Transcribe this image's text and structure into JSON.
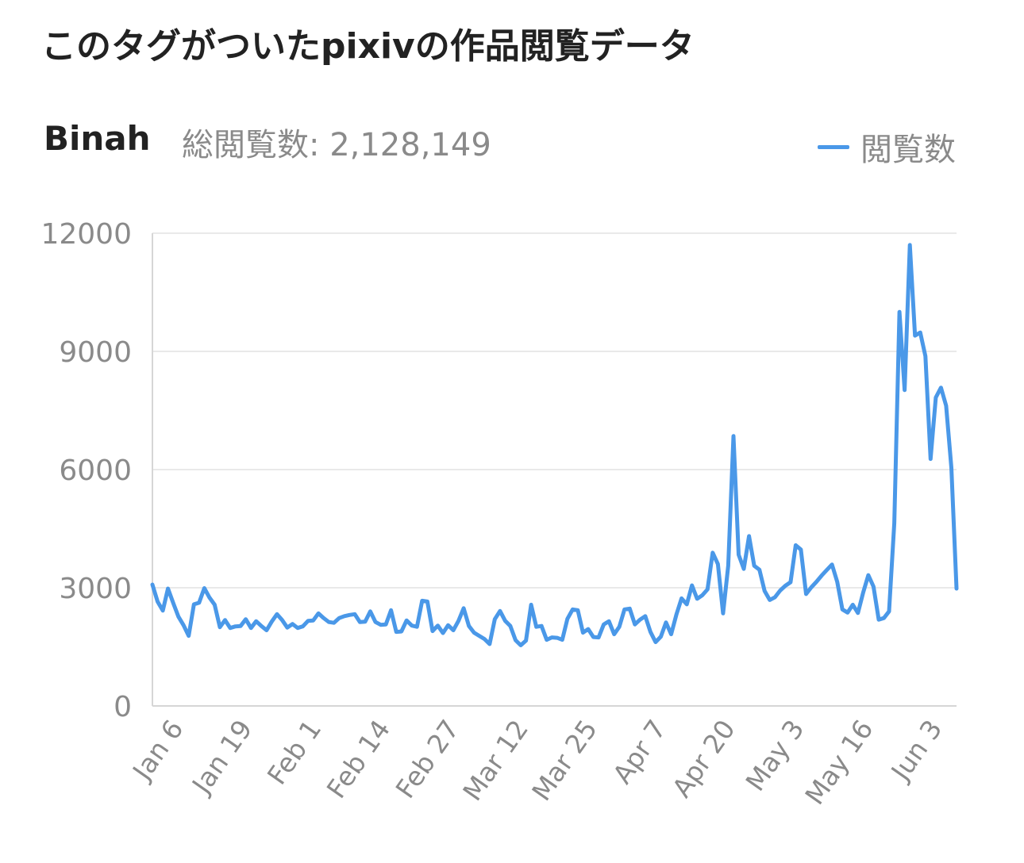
{
  "header": {
    "title": "このタグがついたpixivの作品閲覧データ",
    "tag_name": "Binah",
    "total_views": "総閲覧数: 2,128,149"
  },
  "colors": {
    "series_line": "#4a98e8",
    "grid": "#e9e9e9",
    "axis": "#d6d6d6",
    "tick_text": "#8a8a8a"
  },
  "chart_data": {
    "type": "line",
    "title": "",
    "xlabel": "",
    "ylabel": "",
    "ylim": [
      0,
      12000
    ],
    "yticks": [
      "0",
      "3000",
      "6000",
      "9000",
      "12000"
    ],
    "xticks": [
      "Jan 6",
      "Jan 19",
      "Feb 1",
      "Feb 14",
      "Feb 27",
      "Mar 12",
      "Mar 25",
      "Apr 7",
      "Apr 20",
      "May 3",
      "May 16",
      "Jun 3"
    ],
    "grid": true,
    "legend_position": "top-right",
    "series": [
      {
        "name": "閲覧数",
        "values": [
          3080,
          2650,
          2420,
          2980,
          2620,
          2270,
          2050,
          1780,
          2580,
          2620,
          2990,
          2750,
          2570,
          2000,
          2180,
          1980,
          2020,
          2030,
          2200,
          1980,
          2150,
          2030,
          1920,
          2140,
          2330,
          2180,
          1990,
          2080,
          1980,
          2020,
          2160,
          2170,
          2350,
          2230,
          2130,
          2110,
          2230,
          2280,
          2310,
          2330,
          2130,
          2140,
          2400,
          2130,
          2060,
          2070,
          2430,
          1880,
          1890,
          2170,
          2040,
          2010,
          2670,
          2650,
          1900,
          2040,
          1850,
          2050,
          1920,
          2160,
          2480,
          2030,
          1860,
          1780,
          1700,
          1570,
          2200,
          2410,
          2160,
          2030,
          1670,
          1540,
          1660,
          2570,
          2010,
          2030,
          1680,
          1740,
          1730,
          1680,
          2210,
          2450,
          2430,
          1860,
          1950,
          1750,
          1740,
          2070,
          2150,
          1820,
          2010,
          2450,
          2470,
          2070,
          2190,
          2280,
          1880,
          1620,
          1760,
          2120,
          1820,
          2320,
          2730,
          2580,
          3060,
          2720,
          2810,
          2960,
          3890,
          3600,
          2350,
          3560,
          6850,
          3840,
          3480,
          4310,
          3560,
          3460,
          2920,
          2690,
          2760,
          2930,
          3050,
          3140,
          4080,
          3970,
          2840,
          3010,
          3150,
          3310,
          3450,
          3590,
          3150,
          2450,
          2370,
          2570,
          2360,
          2880,
          3320,
          3030,
          2190,
          2230,
          2400,
          4640,
          10000,
          8020,
          11700,
          9400,
          9480,
          8880,
          6270,
          7830,
          8080,
          7620,
          6050,
          2980
        ]
      }
    ]
  }
}
